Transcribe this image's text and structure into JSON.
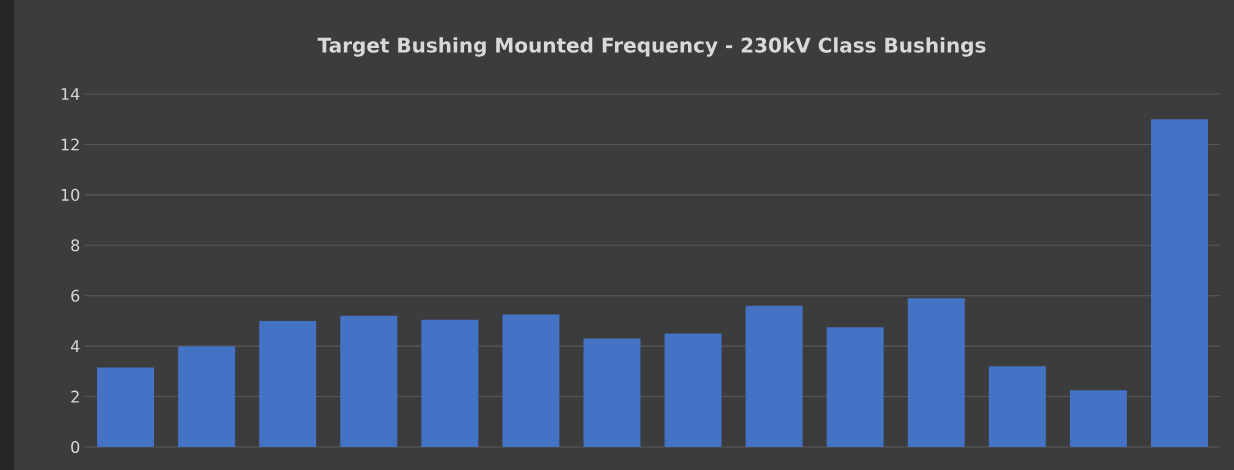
{
  "chart_data": {
    "type": "bar",
    "title": "Target Bushing Mounted Frequency - 230kV Class Bushings",
    "categories": [
      null,
      null,
      null,
      null,
      null,
      null,
      null,
      null,
      null,
      null,
      null,
      null,
      null,
      null
    ],
    "values": [
      3.15,
      4.0,
      5.0,
      5.2,
      5.05,
      5.25,
      4.3,
      4.5,
      5.6,
      4.75,
      5.9,
      3.2,
      2.25,
      13.0
    ],
    "color": "#4472c4",
    "ylim": [
      0,
      14
    ],
    "yticks": [
      0,
      2,
      4,
      6,
      8,
      10,
      12,
      14
    ],
    "grid": "y"
  }
}
